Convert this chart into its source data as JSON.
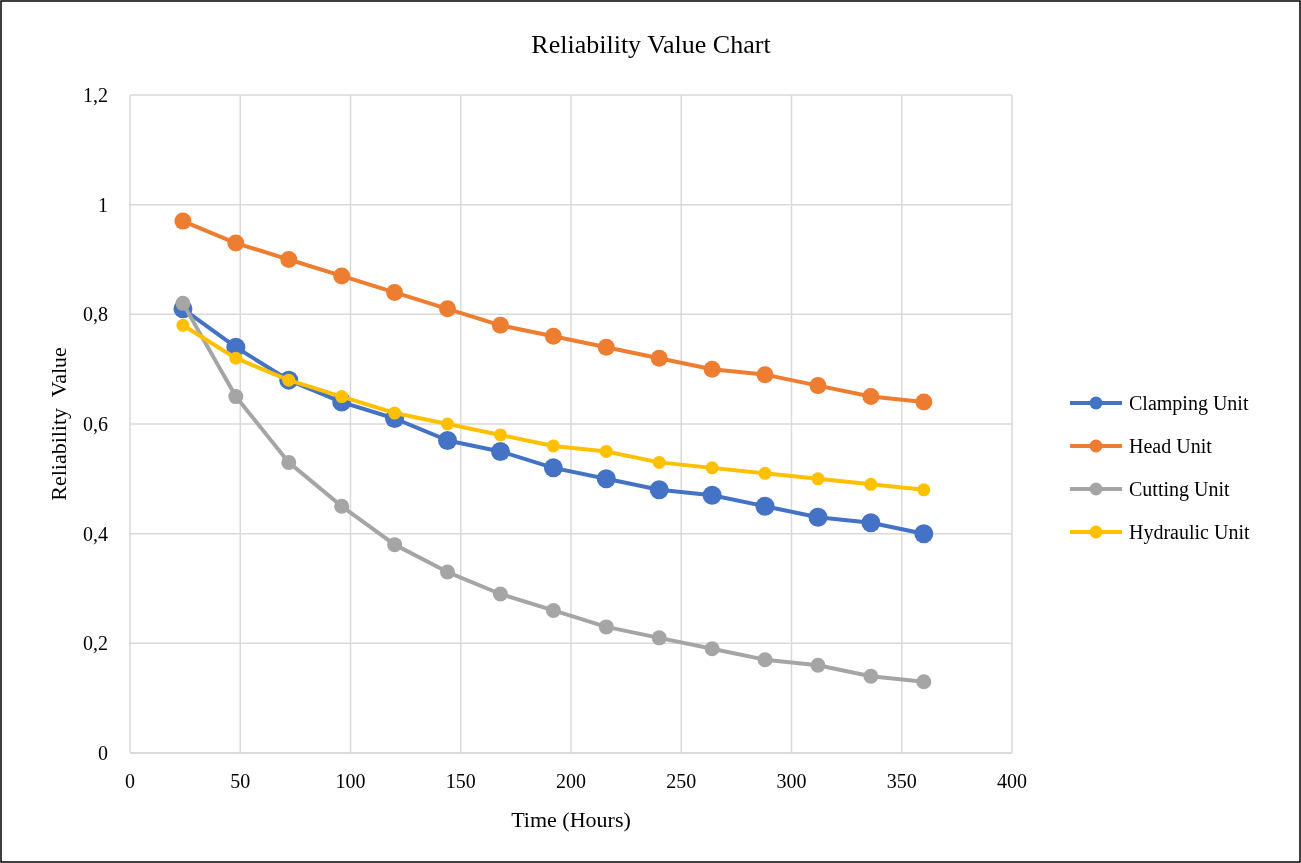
{
  "chart_data": {
    "type": "line",
    "title": "Reliability Value Chart",
    "xlabel": "Time (Hours)",
    "ylabel": "Reliability  Value",
    "x": [
      24,
      48,
      72,
      96,
      120,
      144,
      168,
      192,
      216,
      240,
      264,
      288,
      312,
      336,
      360
    ],
    "series": [
      {
        "name": "Clamping Unit",
        "color": "#4472c4",
        "values": [
          0.81,
          0.74,
          0.68,
          0.64,
          0.61,
          0.57,
          0.55,
          0.52,
          0.5,
          0.48,
          0.47,
          0.45,
          0.43,
          0.42,
          0.4
        ]
      },
      {
        "name": "Head Unit",
        "color": "#ed7d31",
        "values": [
          0.97,
          0.93,
          0.9,
          0.87,
          0.84,
          0.81,
          0.78,
          0.76,
          0.74,
          0.72,
          0.7,
          0.69,
          0.67,
          0.65,
          0.64
        ]
      },
      {
        "name": "Cutting Unit",
        "color": "#a5a5a5",
        "values": [
          0.82,
          0.65,
          0.53,
          0.45,
          0.38,
          0.33,
          0.29,
          0.26,
          0.23,
          0.21,
          0.19,
          0.17,
          0.16,
          0.14,
          0.13
        ]
      },
      {
        "name": "Hydraulic Unit",
        "color": "#ffc000",
        "values": [
          0.78,
          0.72,
          0.68,
          0.65,
          0.62,
          0.6,
          0.58,
          0.56,
          0.55,
          0.53,
          0.52,
          0.51,
          0.5,
          0.49,
          0.48
        ]
      }
    ],
    "xlim": [
      0,
      400
    ],
    "xticks": [
      0,
      50,
      100,
      150,
      200,
      250,
      300,
      350,
      400
    ],
    "ylim": [
      0,
      1.2
    ],
    "yticks": [
      0,
      {
        "value": 0.2,
        "label": "0,2"
      },
      {
        "value": 0.4,
        "label": "0,4"
      },
      {
        "value": 0.6,
        "label": "0,6"
      },
      {
        "value": 0.8,
        "label": "0,8"
      },
      1,
      {
        "value": 1.2,
        "label": "1,2"
      }
    ],
    "grid": true,
    "legend": "right",
    "marker": "circle",
    "line_style": "solid"
  }
}
